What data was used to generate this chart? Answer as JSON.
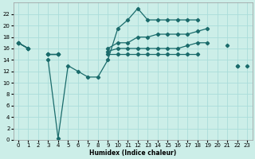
{
  "xlabel": "Humidex (Indice chaleur)",
  "bg_color": "#cceee8",
  "grid_color": "#aaddda",
  "line_color": "#1a6b6b",
  "ylim": [
    0,
    24
  ],
  "xlim": [
    -0.5,
    23.5
  ],
  "yticks": [
    0,
    2,
    4,
    6,
    8,
    10,
    12,
    14,
    16,
    18,
    20,
    22
  ],
  "xticks": [
    0,
    1,
    2,
    3,
    4,
    5,
    6,
    7,
    8,
    9,
    10,
    11,
    12,
    13,
    14,
    15,
    16,
    17,
    18,
    19,
    20,
    21,
    22,
    23
  ],
  "s1_x": [
    0,
    1,
    2,
    3,
    4,
    5,
    6,
    7,
    8,
    9,
    10,
    11,
    12,
    13,
    14,
    15,
    16,
    17,
    18,
    19,
    20,
    21,
    22,
    23
  ],
  "s1_y": [
    17,
    16,
    null,
    14,
    0.3,
    13,
    12,
    11,
    11,
    14,
    19.5,
    21,
    23,
    21,
    21,
    21,
    21,
    21,
    21,
    null,
    null,
    null,
    null,
    null
  ],
  "s2_x": [
    0,
    1,
    2,
    3,
    4,
    5,
    6,
    7,
    8,
    9,
    10,
    11,
    12,
    13,
    14,
    15,
    16,
    17,
    18,
    19,
    20,
    21,
    22,
    23
  ],
  "s2_y": [
    17,
    16,
    null,
    15,
    15,
    null,
    null,
    null,
    null,
    16,
    17,
    17,
    18,
    18,
    18.5,
    18.5,
    18.5,
    18.5,
    19,
    19.5,
    null,
    16.5,
    null,
    13
  ],
  "s3_x": [
    0,
    1,
    2,
    3,
    4,
    5,
    6,
    7,
    8,
    9,
    10,
    11,
    12,
    13,
    14,
    15,
    16,
    17,
    18,
    19,
    20,
    21,
    22,
    23
  ],
  "s3_y": [
    17,
    16,
    null,
    15,
    15,
    null,
    null,
    null,
    null,
    15.5,
    16,
    16,
    16,
    16,
    16,
    16,
    16,
    16.5,
    17,
    17,
    null,
    null,
    13,
    null
  ],
  "s4_x": [
    0,
    1,
    2,
    3,
    4,
    5,
    6,
    7,
    8,
    9,
    10,
    11,
    12,
    13,
    14,
    15,
    16,
    17,
    18,
    19,
    20,
    21,
    22,
    23
  ],
  "s4_y": [
    17,
    16,
    null,
    15,
    15,
    null,
    null,
    null,
    null,
    15,
    15,
    15,
    15,
    15,
    15,
    15,
    15,
    15,
    15,
    null,
    null,
    null,
    13,
    null
  ]
}
